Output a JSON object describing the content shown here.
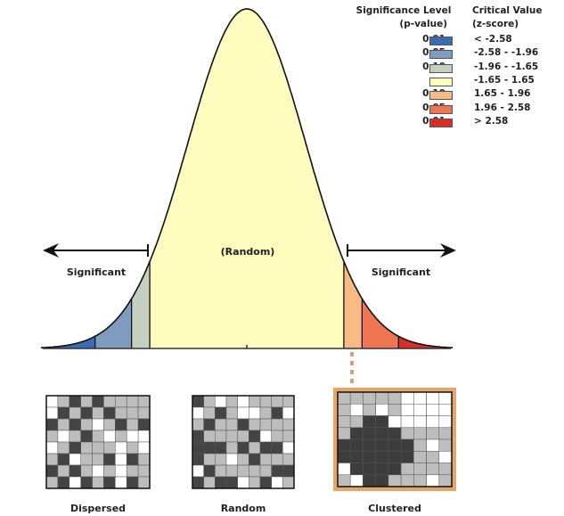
{
  "legend": {
    "significance_header": [
      "Significance Level",
      "(p-value)"
    ],
    "critical_header": [
      "Critical Value",
      "(z-score)"
    ],
    "rows": [
      {
        "p": "0.01",
        "z": "< -2.58",
        "color": "#3a6bb5"
      },
      {
        "p": "0.05",
        "z": "-2.58 - -1.96",
        "color": "#7f9cc0"
      },
      {
        "p": "0.10",
        "z": "-1.96 - -1.65",
        "color": "#c4cfbf"
      },
      {
        "p": "---",
        "z": "-1.65 - 1.65",
        "color": "#fdfbbd"
      },
      {
        "p": "0.10",
        "z": "1.65 - 1.96",
        "color": "#f9bb86"
      },
      {
        "p": "0.05",
        "z": "1.96 - 2.58",
        "color": "#ee7552"
      },
      {
        "p": "0.01",
        "z": "> 2.58",
        "color": "#d92e25"
      }
    ]
  },
  "curve": {
    "random_label": "(Random)",
    "left_label": "Significant",
    "right_label": "Significant",
    "z_breaks": [
      -2.58,
      -1.96,
      -1.65,
      1.65,
      1.96,
      2.58
    ]
  },
  "maps": [
    {
      "label": "Dispersed"
    },
    {
      "label": "Random"
    },
    {
      "label": "Clustered",
      "highlight_color": "#e8a56a"
    }
  ]
}
